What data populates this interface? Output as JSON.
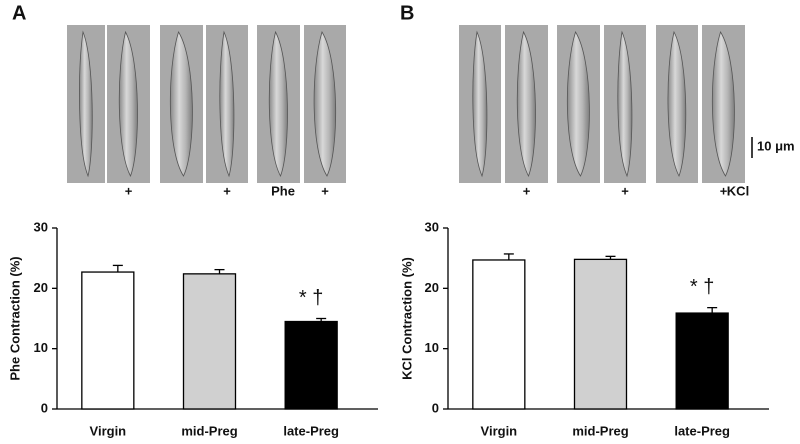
{
  "chart_data": [
    {
      "type": "bar",
      "panel_label": "A",
      "treatment_label": "Phe",
      "treatment_mark": "+",
      "ylabel": "Phe Contraction (%)",
      "categories": [
        "Virgin",
        "mid-Preg",
        "late-Preg"
      ],
      "values": [
        22.7,
        22.4,
        14.5
      ],
      "errors": [
        1.1,
        0.7,
        0.5
      ],
      "colors": [
        "#ffffff",
        "#d0d0d0",
        "#000000"
      ],
      "ylim": [
        0,
        30
      ],
      "yticks": [
        0,
        10,
        20,
        30
      ],
      "annotation": "* †"
    },
    {
      "type": "bar",
      "panel_label": "B",
      "treatment_label": "KCl",
      "treatment_mark": "+",
      "scale_bar_label": "10 μm",
      "ylabel": "KCl Contraction (%)",
      "categories": [
        "Virgin",
        "mid-Preg",
        "late-Preg"
      ],
      "values": [
        24.7,
        24.8,
        15.9
      ],
      "errors": [
        1.0,
        0.5,
        0.9
      ],
      "colors": [
        "#ffffff",
        "#d0d0d0",
        "#000000"
      ],
      "ylim": [
        0,
        30
      ],
      "yticks": [
        0,
        10,
        20,
        30
      ],
      "annotation": "* †"
    }
  ]
}
